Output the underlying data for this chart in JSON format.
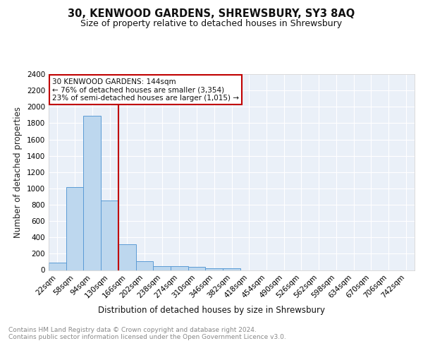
{
  "title": "30, KENWOOD GARDENS, SHREWSBURY, SY3 8AQ",
  "subtitle": "Size of property relative to detached houses in Shrewsbury",
  "xlabel": "Distribution of detached houses by size in Shrewsbury",
  "ylabel": "Number of detached properties",
  "bin_labels": [
    "22sqm",
    "58sqm",
    "94sqm",
    "130sqm",
    "166sqm",
    "202sqm",
    "238sqm",
    "274sqm",
    "310sqm",
    "346sqm",
    "382sqm",
    "418sqm",
    "454sqm",
    "490sqm",
    "526sqm",
    "562sqm",
    "598sqm",
    "634sqm",
    "670sqm",
    "706sqm",
    "742sqm"
  ],
  "bar_values": [
    90,
    1015,
    1890,
    855,
    320,
    110,
    50,
    45,
    35,
    20,
    20,
    0,
    0,
    0,
    0,
    0,
    0,
    0,
    0,
    0,
    0
  ],
  "bar_color": "#bdd7ee",
  "bar_edge_color": "#5b9bd5",
  "vline_pos": 3.5,
  "vline_color": "#c00000",
  "annotation_text": "30 KENWOOD GARDENS: 144sqm\n← 76% of detached houses are smaller (3,354)\n23% of semi-detached houses are larger (1,015) →",
  "annotation_box_color": "#ffffff",
  "annotation_box_edge_color": "#c00000",
  "ylim": [
    0,
    2400
  ],
  "yticks": [
    0,
    200,
    400,
    600,
    800,
    1000,
    1200,
    1400,
    1600,
    1800,
    2000,
    2200,
    2400
  ],
  "footer_text": "Contains HM Land Registry data © Crown copyright and database right 2024.\nContains public sector information licensed under the Open Government Licence v3.0.",
  "bg_color": "#eaf0f8",
  "grid_color": "#ffffff",
  "title_fontsize": 10.5,
  "subtitle_fontsize": 9,
  "ylabel_fontsize": 8.5,
  "xlabel_fontsize": 8.5,
  "tick_fontsize": 7.5,
  "annotation_fontsize": 7.5,
  "footer_fontsize": 6.5
}
